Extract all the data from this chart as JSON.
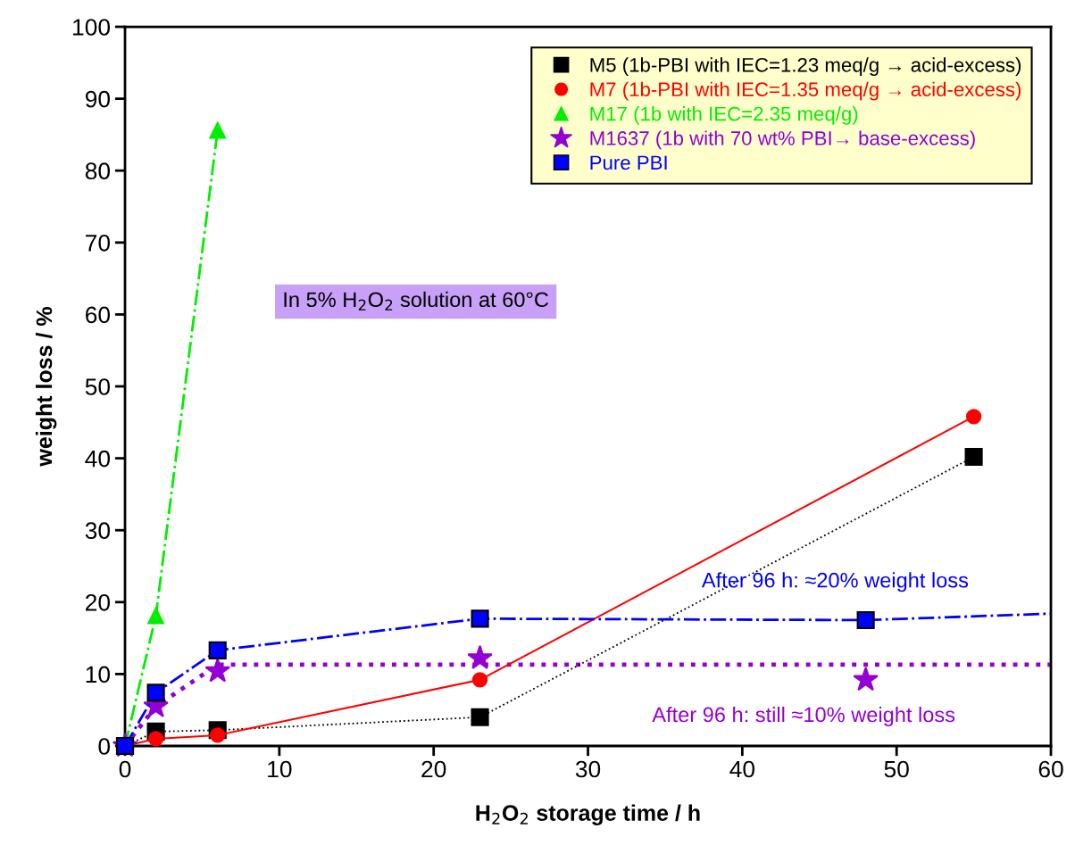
{
  "chart_data": {
    "type": "line",
    "xlabel": "H$_{2}$O$_{2}$ storage time / h",
    "ylabel": "weight loss / %",
    "xlim": [
      0,
      60
    ],
    "xticks": [
      0,
      10,
      20,
      30,
      40,
      50,
      60
    ],
    "ylim": [
      0,
      100
    ],
    "yticks": [
      0,
      10,
      20,
      30,
      40,
      50,
      60,
      70,
      80,
      90,
      100
    ],
    "grid": false,
    "legend": "top right",
    "series": [
      {
        "name": "M5 (1b-PBI with IEC=1.23 meq/g → acid-excess)",
        "color": "#000000",
        "marker": "square",
        "line_style": "dotted",
        "x": [
          0,
          2,
          6,
          23,
          55
        ],
        "values": [
          0,
          2.0,
          2.2,
          4.0,
          40.2
        ]
      },
      {
        "name": "M7 (1b-PBI with IEC=1.35 meq/g → acid-excess)",
        "color": "#ff0000",
        "marker": "circle",
        "line_style": "solid",
        "x": [
          0,
          2,
          6,
          23,
          55
        ],
        "values": [
          0,
          1.0,
          1.5,
          9.2,
          45.8
        ]
      },
      {
        "name": "M17 (1b with IEC=2.35 meq/g)",
        "color": "#00ee00",
        "marker": "triangle",
        "line_style": "dashdot",
        "x": [
          0,
          2,
          6
        ],
        "values": [
          0,
          18.1,
          85.6
        ]
      },
      {
        "name": "M1637 (1b with 70 wt% PBI→ base-excess)",
        "type": "scatter",
        "color": "#9400d3",
        "marker": "star",
        "x": [
          0,
          2,
          6,
          23,
          48
        ],
        "values": [
          0,
          5.5,
          10.4,
          12.2,
          9.2
        ]
      },
      {
        "name": "Pure PBI",
        "color": "#0000ff",
        "marker": "square",
        "line_style": "dashdot",
        "x": [
          0,
          2,
          6,
          23,
          48
        ],
        "values": [
          0,
          7.4,
          13.3,
          17.7,
          17.5
        ]
      },
      {
        "color": "#9400d3",
        "marker": "none",
        "line_style": "dotted",
        "x": [
          0,
          2,
          6,
          60
        ],
        "values": [
          0,
          5.5,
          11.3,
          11.3
        ]
      },
      {
        "color": "#0000ff",
        "marker": "none",
        "line_style": "dashdot",
        "x": [
          48,
          60
        ],
        "values": [
          17.5,
          18.4
        ]
      }
    ],
    "annotations": [
      "In 5% H$_{2}$O$_{2}$ solution at 60°C",
      "After 96 h: ≈20% weight loss",
      "After 96 h: still ≈10% weight loss"
    ]
  }
}
